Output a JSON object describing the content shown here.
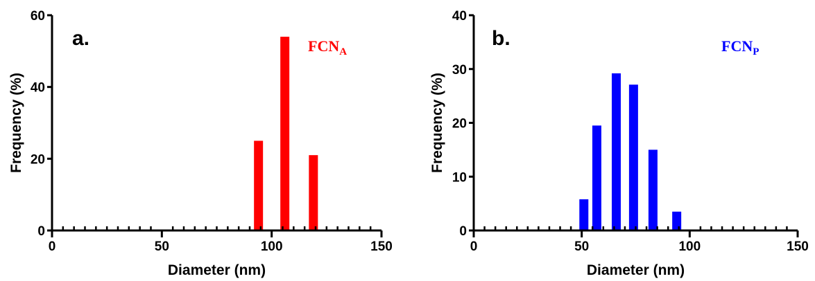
{
  "chart_data": [
    {
      "type": "bar",
      "panel_label": "a.",
      "series_label": "FCN",
      "series_subscript": "A",
      "color": "#ff0000",
      "xlabel": "Diameter (nm)",
      "ylabel": "Frequency (%)",
      "xlim": [
        0,
        150
      ],
      "ylim": [
        0,
        60
      ],
      "x_ticks": [
        "0",
        "50",
        "100",
        "150"
      ],
      "y_ticks": [
        "0",
        "20",
        "40",
        "60"
      ],
      "x": [
        94,
        106,
        119
      ],
      "values": [
        25,
        54,
        21
      ]
    },
    {
      "type": "bar",
      "panel_label": "b.",
      "series_label": "FCN",
      "series_subscript": "P",
      "color": "#0000ff",
      "xlabel": "Diameter (nm)",
      "ylabel": "Frequency (%)",
      "xlim": [
        0,
        150
      ],
      "ylim": [
        0,
        40
      ],
      "x_ticks": [
        "0",
        "50",
        "100",
        "150"
      ],
      "y_ticks": [
        "0",
        "10",
        "20",
        "30",
        "40"
      ],
      "x": [
        51,
        57,
        66,
        74,
        83,
        94
      ],
      "values": [
        5.8,
        19.5,
        29.2,
        27.1,
        15.0,
        3.5
      ]
    }
  ]
}
